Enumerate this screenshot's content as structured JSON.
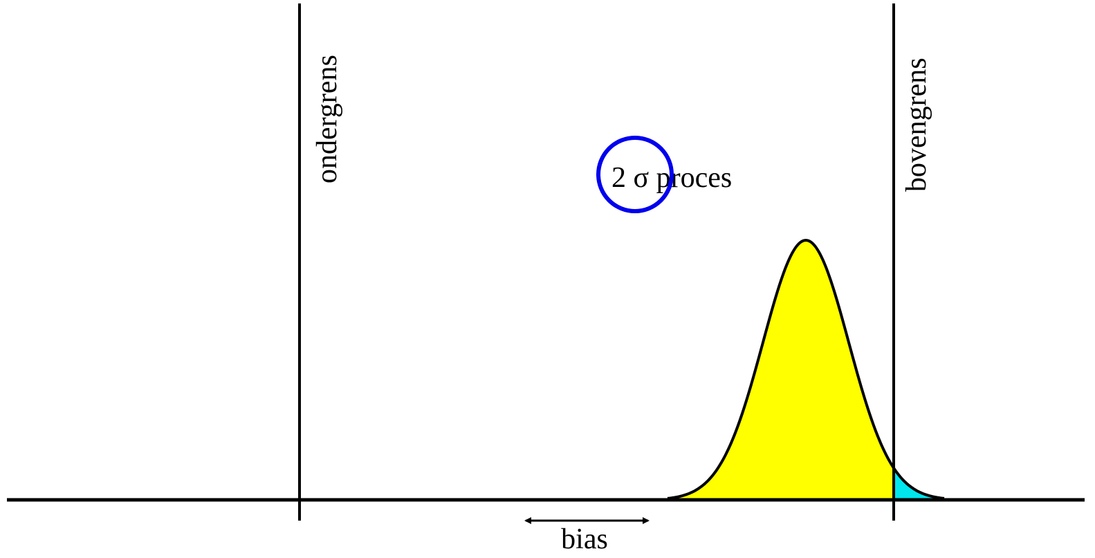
{
  "labels": {
    "lower_limit": "ondergrens",
    "upper_limit": "bovengrens",
    "process": "2 σ proces",
    "bias": "bias"
  }
}
